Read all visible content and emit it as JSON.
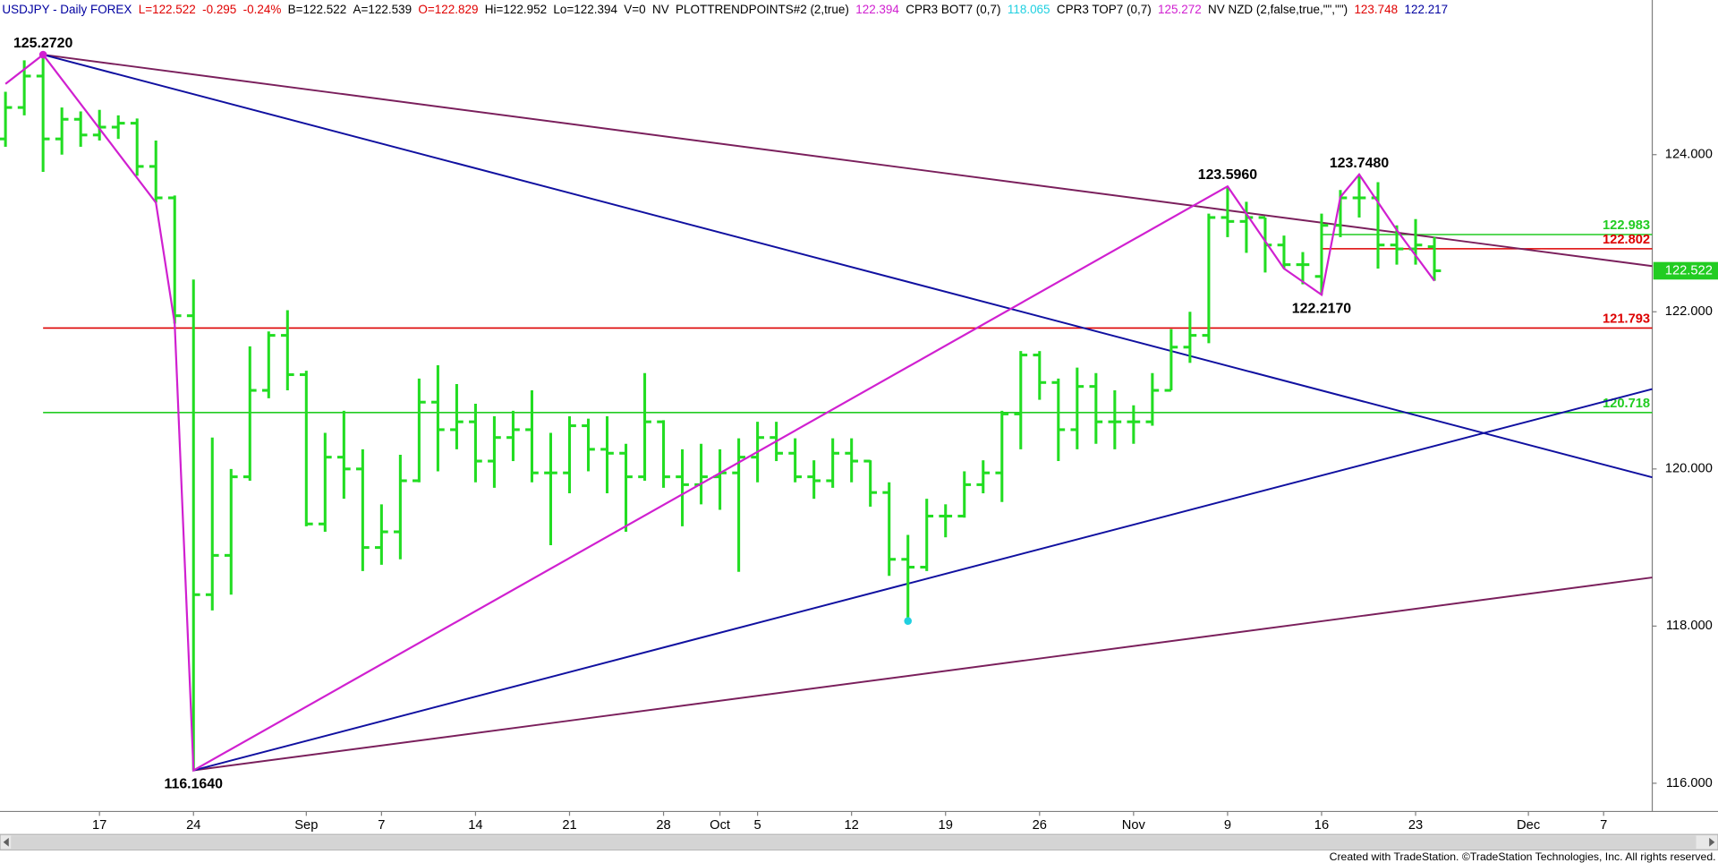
{
  "chart_data": {
    "type": "ohlc",
    "header": [
      {
        "text": "USDJPY - Daily FOREX",
        "color": "#0000a0"
      },
      {
        "text": "L=122.522",
        "color": "#e00000"
      },
      {
        "text": "-0.295",
        "color": "#e00000"
      },
      {
        "text": "-0.24%",
        "color": "#e00000"
      },
      {
        "text": "B=122.522",
        "color": "#000000"
      },
      {
        "text": "A=122.539",
        "color": "#000000"
      },
      {
        "text": "O=122.829",
        "color": "#e00000"
      },
      {
        "text": "Hi=122.952",
        "color": "#000000"
      },
      {
        "text": "Lo=122.394",
        "color": "#000000"
      },
      {
        "text": "V=0",
        "color": "#000000"
      },
      {
        "text": "NV",
        "color": "#000000"
      },
      {
        "text": "PLOTTRENDPOINTS#2 (2,true)",
        "color": "#000000"
      },
      {
        "text": "122.394",
        "color": "#d020d0"
      },
      {
        "text": "CPR3 BOT7 (0,7)",
        "color": "#000000"
      },
      {
        "text": "118.065",
        "color": "#20d0e0"
      },
      {
        "text": "CPR3 TOP7 (0,7)",
        "color": "#000000"
      },
      {
        "text": "125.272",
        "color": "#d020d0"
      },
      {
        "text": "NV NZD (2,false,true,\"\",\"\")",
        "color": "#000000"
      },
      {
        "text": "123.748",
        "color": "#e00000"
      },
      {
        "text": "122.217",
        "color": "#0000a0"
      }
    ],
    "footer": "Created with TradeStation. ©TradeStation Technologies, Inc. All rights reserved.",
    "categories": [
      null,
      null,
      null,
      null,
      null,
      "17",
      null,
      null,
      null,
      null,
      "24",
      null,
      null,
      null,
      null,
      null,
      "Sep",
      null,
      null,
      null,
      "7",
      null,
      null,
      null,
      null,
      "14",
      null,
      null,
      null,
      null,
      "21",
      null,
      null,
      null,
      null,
      "28",
      null,
      null,
      "Oct",
      null,
      "5",
      null,
      null,
      null,
      null,
      "12",
      null,
      null,
      null,
      null,
      "19",
      null,
      null,
      null,
      null,
      "26",
      null,
      null,
      null,
      null,
      "Nov",
      null,
      null,
      null,
      null,
      "9",
      null,
      null,
      null,
      null,
      "16",
      null,
      null,
      null,
      null,
      "23",
      null,
      null,
      null,
      null,
      null,
      "Dec",
      null,
      null,
      null,
      "7",
      null,
      null
    ],
    "color": "#22dd22",
    "open": [
      124.2,
      124.6,
      125.0,
      124.2,
      124.45,
      124.25,
      124.35,
      124.4,
      123.85,
      123.45,
      121.95,
      118.4,
      118.9,
      119.9,
      121.0,
      121.7,
      121.2,
      119.3,
      120.15,
      120.0,
      119.0,
      119.2,
      119.85,
      120.85,
      120.5,
      120.6,
      120.1,
      120.4,
      120.5,
      119.95,
      119.95,
      120.55,
      120.25,
      120.2,
      119.9,
      120.6,
      119.9,
      119.8,
      119.9,
      119.95,
      120.15,
      120.4,
      120.2,
      119.9,
      119.85,
      120.2,
      120.1,
      119.7,
      118.85,
      118.75,
      119.4,
      119.4,
      119.8,
      119.95,
      120.7,
      121.45,
      121.1,
      120.5,
      121.05,
      120.6,
      120.6,
      120.6,
      121.0,
      121.55,
      121.7,
      123.2,
      123.15,
      123.2,
      122.85,
      122.6,
      122.45,
      123.1,
      123.45,
      123.45,
      122.85,
      122.8,
      122.829,
      null,
      null,
      null,
      null,
      null,
      null,
      null,
      null,
      null,
      null,
      null
    ],
    "high": [
      124.8,
      125.2,
      125.272,
      124.6,
      124.55,
      124.57,
      124.5,
      124.46,
      124.18,
      123.48,
      122.41,
      120.4,
      120.0,
      121.56,
      121.75,
      122.02,
      121.25,
      120.46,
      120.74,
      120.25,
      119.55,
      120.18,
      121.15,
      121.32,
      121.08,
      120.83,
      120.67,
      120.74,
      121.0,
      120.46,
      120.67,
      120.64,
      120.67,
      120.32,
      121.22,
      120.62,
      120.25,
      120.32,
      120.25,
      120.39,
      120.6,
      120.6,
      120.39,
      120.11,
      120.39,
      120.39,
      120.11,
      119.83,
      119.16,
      119.62,
      119.55,
      119.97,
      120.11,
      120.74,
      121.5,
      121.5,
      121.15,
      121.29,
      121.22,
      121.0,
      120.81,
      121.22,
      121.78,
      122.0,
      123.25,
      123.596,
      123.4,
      123.2,
      122.97,
      122.76,
      123.25,
      123.55,
      123.748,
      123.65,
      123.1,
      123.18,
      122.952,
      null,
      null,
      null,
      null,
      null,
      null,
      null,
      null,
      null,
      null,
      null
    ],
    "low": [
      124.1,
      124.5,
      123.78,
      124.0,
      124.1,
      124.18,
      124.2,
      123.73,
      123.39,
      121.85,
      116.164,
      118.2,
      118.4,
      119.85,
      120.9,
      121.0,
      119.27,
      119.2,
      119.62,
      118.7,
      118.78,
      118.85,
      119.83,
      119.97,
      120.25,
      119.83,
      119.76,
      120.1,
      119.83,
      119.03,
      119.69,
      119.97,
      119.69,
      119.2,
      119.85,
      119.76,
      119.27,
      119.55,
      119.48,
      118.69,
      119.83,
      120.1,
      119.83,
      119.62,
      119.76,
      119.83,
      119.52,
      118.64,
      118.065,
      118.7,
      119.13,
      119.38,
      119.69,
      119.58,
      120.25,
      120.88,
      120.1,
      120.25,
      120.32,
      120.25,
      120.32,
      120.55,
      121.0,
      121.35,
      121.6,
      122.95,
      122.75,
      122.5,
      122.55,
      122.35,
      122.217,
      122.95,
      123.2,
      122.55,
      122.6,
      122.6,
      122.394,
      null,
      null,
      null,
      null,
      null,
      null,
      null,
      null,
      null,
      null,
      null
    ],
    "close": [
      124.6,
      125.0,
      124.2,
      124.45,
      124.25,
      124.35,
      124.4,
      123.85,
      123.45,
      121.95,
      118.4,
      118.9,
      119.9,
      121.0,
      121.7,
      121.2,
      119.3,
      120.15,
      120.0,
      119.0,
      119.2,
      119.85,
      120.85,
      120.5,
      120.6,
      120.1,
      120.4,
      120.5,
      119.95,
      119.95,
      120.55,
      120.25,
      120.2,
      119.9,
      120.6,
      119.9,
      119.8,
      119.9,
      119.95,
      120.15,
      120.4,
      120.2,
      119.9,
      119.85,
      120.2,
      120.1,
      119.7,
      118.85,
      118.75,
      119.4,
      119.4,
      119.8,
      119.95,
      120.7,
      121.45,
      121.1,
      120.5,
      121.05,
      120.6,
      120.6,
      120.6,
      121.0,
      121.55,
      121.7,
      123.2,
      123.15,
      123.2,
      122.85,
      122.6,
      122.6,
      123.1,
      123.45,
      123.45,
      122.85,
      122.8,
      122.85,
      122.522,
      null,
      null,
      null,
      null,
      null,
      null,
      null,
      null,
      null,
      null,
      null
    ],
    "ylim": [
      115.641,
      125.968
    ],
    "yticks": [
      {
        "value": 116,
        "label": "116.000"
      },
      {
        "value": 118,
        "label": "118.000"
      },
      {
        "value": 120,
        "label": "120.000"
      },
      {
        "value": 122,
        "label": "122.000"
      },
      {
        "value": 124,
        "label": "124.000"
      }
    ],
    "last": {
      "value": 122.522,
      "color": "#22cc22"
    },
    "levels": [
      {
        "value": 122.983,
        "color": "#22cc22",
        "start": 70
      },
      {
        "value": 122.802,
        "color": "#dd0000",
        "start": 70
      },
      {
        "value": 121.793,
        "color": "#dd0000",
        "start": 2
      },
      {
        "value": 120.718,
        "color": "#22cc22",
        "start": 2
      }
    ],
    "trendlines": [
      {
        "color": "#7a1f5c",
        "from": {
          "index": 2,
          "value": 125.272
        },
        "to": {
          "index": 87,
          "value": 122.6
        }
      },
      {
        "color": "#7a1f5c",
        "from": {
          "index": 10,
          "value": 116.164
        },
        "to": {
          "index": 87,
          "value": 118.6
        }
      },
      {
        "color": "#1010a0",
        "from": {
          "index": 2,
          "value": 125.272
        },
        "to": {
          "index": 87,
          "value": 119.93
        }
      },
      {
        "color": "#1010a0",
        "from": {
          "index": 10,
          "value": 116.164
        },
        "to": {
          "index": 87,
          "value": 120.98
        }
      }
    ],
    "zigzag": {
      "color": "#d020d0",
      "points": [
        {
          "index": 0,
          "value": 124.9
        },
        {
          "index": 2,
          "value": 125.272,
          "label": "125.2720"
        },
        {
          "index": 8,
          "value": 123.39
        },
        {
          "index": 9,
          "value": 121.85
        },
        {
          "index": 10,
          "value": 116.164,
          "label": "116.1640"
        },
        {
          "index": 65,
          "value": 123.596,
          "label": "123.5960"
        },
        {
          "index": 68,
          "value": 122.55
        },
        {
          "index": 70,
          "value": 122.217,
          "label": "122.2170"
        },
        {
          "index": 71,
          "value": 123.46
        },
        {
          "index": 72,
          "value": 123.748,
          "label": "123.7480"
        },
        {
          "index": 74,
          "value": 123.04
        },
        {
          "index": 76,
          "value": 122.394
        }
      ]
    },
    "markers": [
      {
        "index": 2,
        "value": 125.272,
        "color": "#d020d0"
      },
      {
        "index": 48,
        "value": 118.065,
        "color": "#20d0e0"
      }
    ]
  }
}
